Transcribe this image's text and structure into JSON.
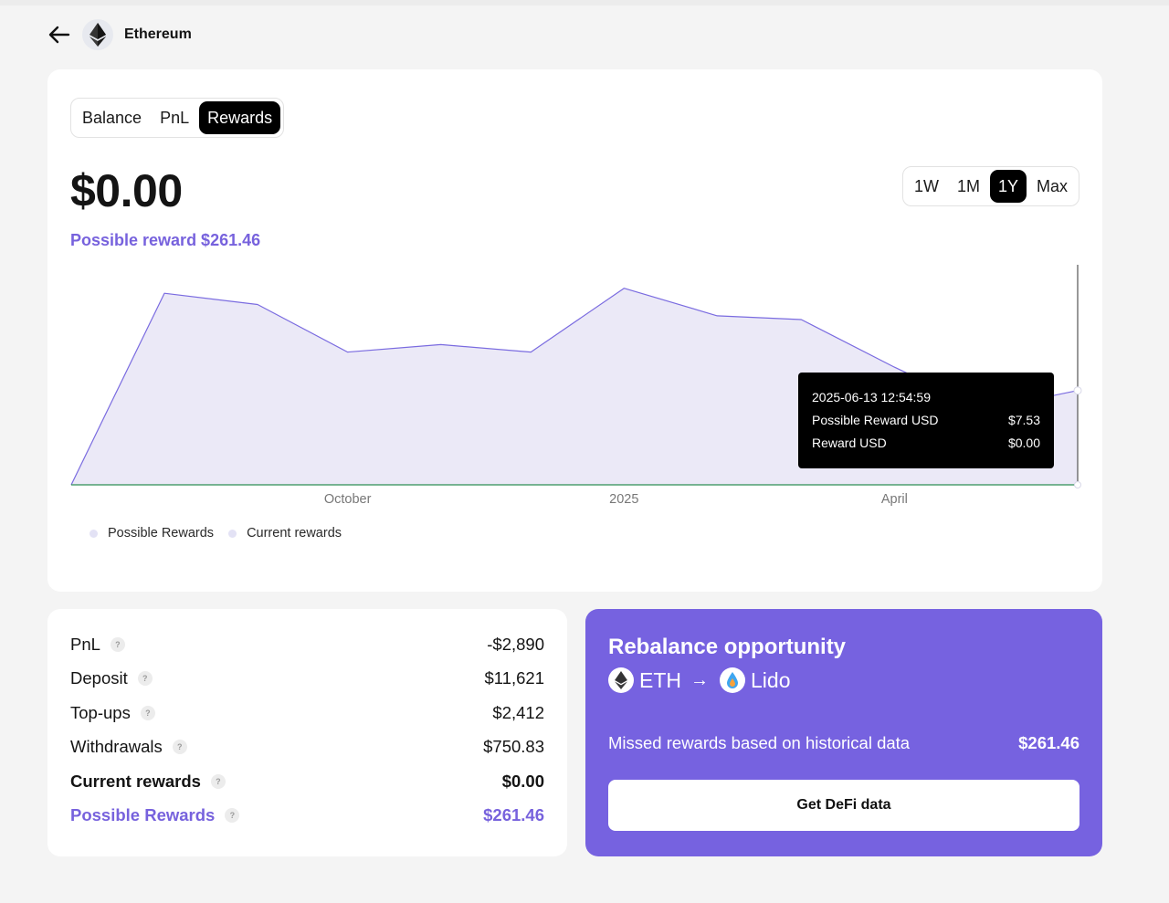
{
  "header": {
    "title": "Ethereum",
    "coin_icon": "ethereum-icon",
    "back_icon": "arrow-left-icon"
  },
  "tabs": [
    {
      "label": "Balance",
      "active": false
    },
    {
      "label": "PnL",
      "active": false
    },
    {
      "label": "Rewards",
      "active": true
    }
  ],
  "ranges": [
    {
      "label": "1W",
      "active": false
    },
    {
      "label": "1M",
      "active": false
    },
    {
      "label": "1Y",
      "active": true
    },
    {
      "label": "Max",
      "active": false
    }
  ],
  "summary": {
    "value": "$0.00",
    "possible_reward": "Possible reward $261.46"
  },
  "chart_data": {
    "type": "area",
    "x_ticks": [
      "October",
      "2025",
      "April"
    ],
    "series": [
      {
        "name": "Possible Rewards",
        "color": "#7a6be0",
        "fill": "#ebe9f7",
        "points": [
          {
            "x": "2024-07-13",
            "y": 0
          },
          {
            "x": "2024-08-13",
            "y": 15.3
          },
          {
            "x": "2024-09-13",
            "y": 14.4
          },
          {
            "x": "2024-10-13",
            "y": 10.6
          },
          {
            "x": "2024-11-13",
            "y": 11.2
          },
          {
            "x": "2024-12-13",
            "y": 10.6
          },
          {
            "x": "2025-01-13",
            "y": 15.7
          },
          {
            "x": "2025-02-13",
            "y": 13.5
          },
          {
            "x": "2025-03-13",
            "y": 13.2
          },
          {
            "x": "2025-04-13",
            "y": 9.4
          },
          {
            "x": "2025-05-13",
            "y": 6.0
          },
          {
            "x": "2025-06-13",
            "y": 7.53
          }
        ]
      },
      {
        "name": "Current rewards",
        "color": "#2f8f55",
        "points": [
          {
            "x": "2024-07-13",
            "y": 0
          },
          {
            "x": "2025-06-13",
            "y": 0
          }
        ]
      }
    ],
    "ylim": [
      0,
      17.5
    ],
    "legend": [
      "Possible Rewards",
      "Current rewards"
    ],
    "legend_position": "bottom-left",
    "grid": false
  },
  "tooltip": {
    "date": "2025-06-13 12:54:59",
    "rows": [
      {
        "label": "Possible Reward USD",
        "value": "$7.53"
      },
      {
        "label": "Reward USD",
        "value": "$0.00"
      }
    ]
  },
  "stats": [
    {
      "label": "PnL",
      "value": "-$2,890",
      "style": "normal"
    },
    {
      "label": "Deposit",
      "value": "$11,621",
      "style": "normal"
    },
    {
      "label": "Top-ups",
      "value": "$2,412",
      "style": "normal"
    },
    {
      "label": "Withdrawals",
      "value": "$750.83",
      "style": "normal"
    },
    {
      "label": "Current rewards",
      "value": "$0.00",
      "style": "bold"
    },
    {
      "label": "Possible Rewards",
      "value": "$261.46",
      "style": "purple"
    }
  ],
  "help_glyph": "?",
  "rebalance": {
    "title": "Rebalance opportunity",
    "from": "ETH",
    "arrow": "→",
    "to": "Lido",
    "missed_label": "Missed rewards based on historical data",
    "missed_value": "$261.46",
    "button": "Get DeFi data"
  }
}
